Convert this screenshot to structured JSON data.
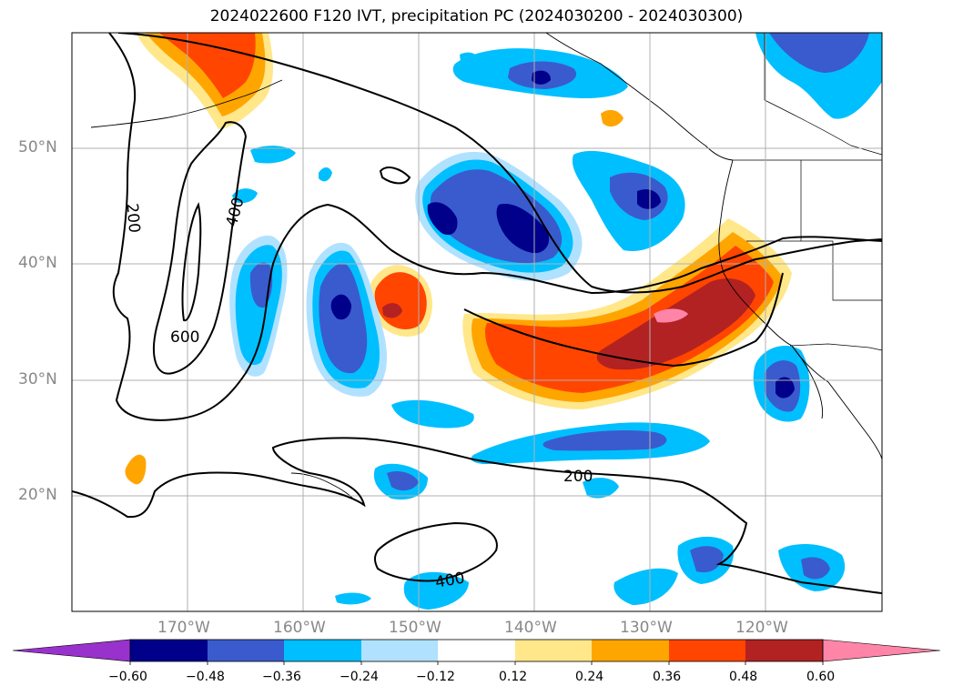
{
  "title": "2024022600 F120 IVT, precipitation PC (2024030200 - 2024030300)",
  "lat_labels": [
    "50°N",
    "40°N",
    "30°N",
    "20°N"
  ],
  "lon_labels": [
    "170°W",
    "160°W",
    "150°W",
    "140°W",
    "130°W",
    "120°W"
  ],
  "contour_labels": [
    "200",
    "400",
    "600",
    "200",
    "400"
  ],
  "colorbar": {
    "tick_labels": [
      "−0.60",
      "−0.48",
      "−0.36",
      "−0.24",
      "−0.12",
      "0.12",
      "0.24",
      "0.36",
      "0.48",
      "0.60"
    ],
    "colors": [
      "#9932cc",
      "#00008b",
      "#3a5bcd",
      "#00bfff",
      "#b0e2ff",
      "#ffffff",
      "#ffe78a",
      "#ffa500",
      "#ff4500",
      "#b22222",
      "#ff85a8"
    ]
  }
}
